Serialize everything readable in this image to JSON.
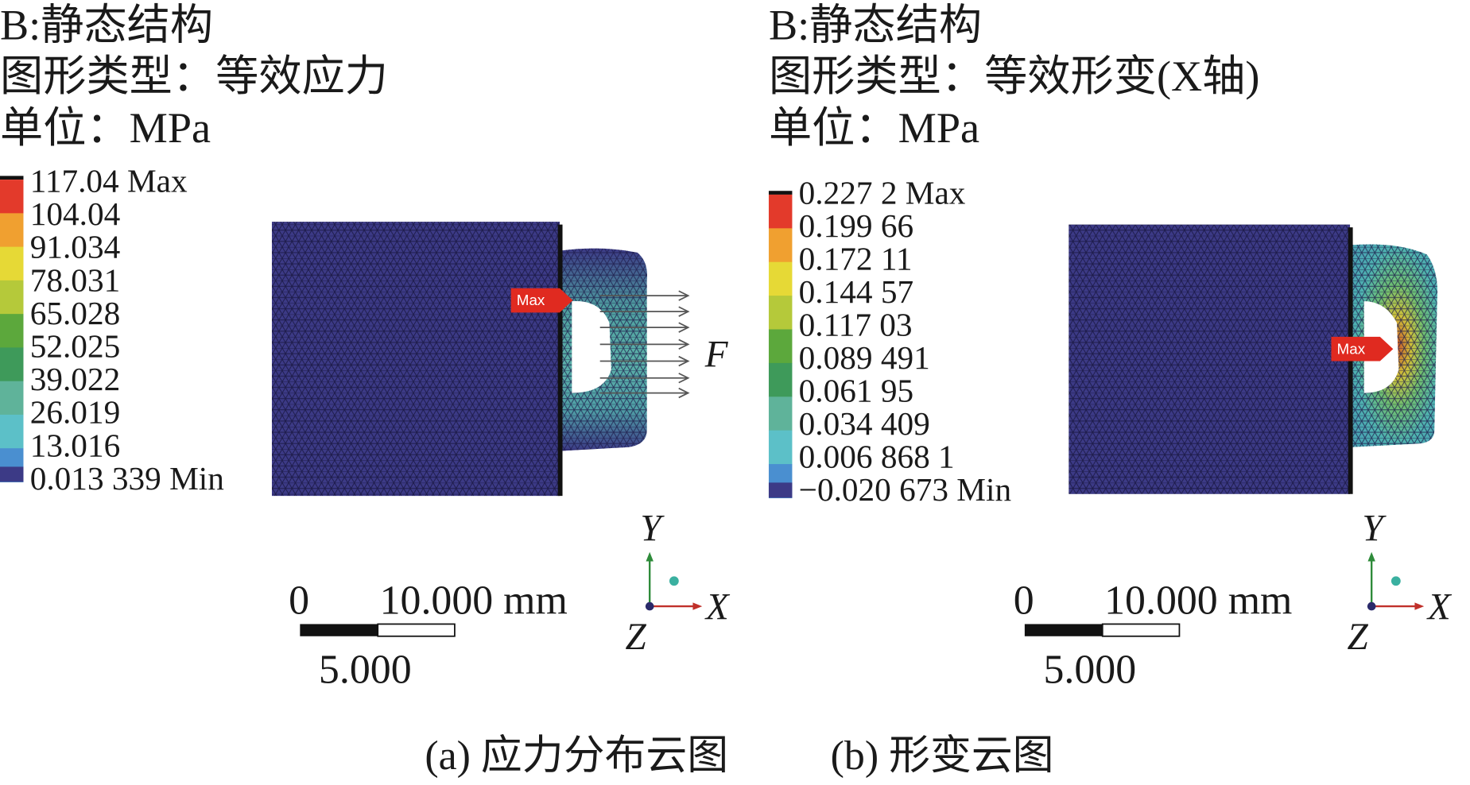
{
  "panels": [
    {
      "header": [
        "B:静态结构",
        "图形类型：等效应力",
        "单位：MPa"
      ],
      "legend": [
        "117.04 Max",
        "104.04",
        "91.034",
        "78.031",
        "65.028",
        "52.025",
        "39.022",
        "26.019",
        "13.016",
        "0.013 339 Min"
      ],
      "probe": "Max",
      "force_label": "F",
      "scale": {
        "zero": "0",
        "length": "10.000 mm",
        "half": "5.000"
      },
      "axes": {
        "y": "Y",
        "x": "X",
        "z": "Z"
      },
      "caption": "(a) 应力分布云图"
    },
    {
      "header": [
        "B:静态结构",
        "图形类型：等效形变(X轴)",
        "单位：MPa"
      ],
      "legend": [
        "0.227 2 Max",
        "0.199 66",
        "0.172 11",
        "0.144 57",
        "0.117 03",
        "0.089 491",
        "0.061 95",
        "0.034 409",
        "0.006 868 1",
        "−0.020 673 Min"
      ],
      "probe": "Max",
      "scale": {
        "zero": "0",
        "length": "10.000 mm",
        "half": "5.000"
      },
      "axes": {
        "y": "Y",
        "x": "X",
        "z": "Z"
      },
      "caption": "(b) 形变云图"
    }
  ]
}
